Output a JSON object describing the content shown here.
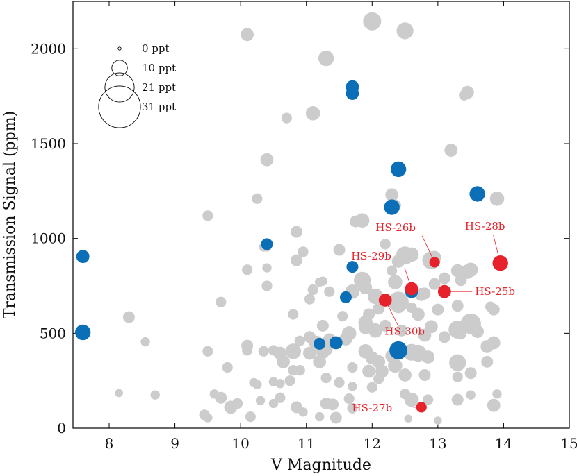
{
  "chart_data": {
    "type": "scatter",
    "title": "",
    "xlabel": "V Magnitude",
    "ylabel": "Transmission Signal (ppm)",
    "xlim": [
      7.45,
      15.0
    ],
    "ylim": [
      0,
      2250
    ],
    "xticks": [
      8,
      9,
      10,
      11,
      12,
      13,
      14,
      15
    ],
    "yticks": [
      0,
      500,
      1000,
      1500,
      2000
    ],
    "grid": false,
    "legend": {
      "placement": "top-left",
      "title": "",
      "entries": [
        {
          "label": "0 ppt",
          "size": 0
        },
        {
          "label": "10 ppt",
          "size": 10
        },
        {
          "label": "21 ppt",
          "size": 21
        },
        {
          "label": "31 ppt",
          "size": 31
        }
      ]
    },
    "colors": {
      "known": "#cccccc",
      "highlight": "#0a6fb7",
      "new": "#e8222a"
    },
    "series": [
      {
        "key": "known",
        "points": [
          [
            10.1,
            2075,
            8
          ],
          [
            12.0,
            2145,
            12
          ],
          [
            12.5,
            2095,
            11
          ],
          [
            11.3,
            1950,
            10
          ],
          [
            11.1,
            1660,
            9
          ],
          [
            10.7,
            1635,
            6
          ],
          [
            13.45,
            1770,
            8
          ],
          [
            13.4,
            1755,
            6
          ],
          [
            13.2,
            1465,
            8
          ],
          [
            10.4,
            1415,
            8
          ],
          [
            12.3,
            1230,
            8
          ],
          [
            12.35,
            1175,
            7
          ],
          [
            10.25,
            1210,
            6
          ],
          [
            13.9,
            1210,
            9
          ],
          [
            9.5,
            1120,
            6
          ],
          [
            11.85,
            1095,
            9
          ],
          [
            11.75,
            1090,
            7
          ],
          [
            12.2,
            970,
            6
          ],
          [
            11.5,
            940,
            7
          ],
          [
            10.85,
            1035,
            7
          ],
          [
            10.95,
            930,
            6
          ],
          [
            10.4,
            955,
            5
          ],
          [
            10.35,
            955,
            5
          ],
          [
            10.4,
            845,
            5
          ],
          [
            10.1,
            835,
            6
          ],
          [
            10.85,
            885,
            7
          ],
          [
            12.3,
            830,
            6
          ],
          [
            12.5,
            910,
            12
          ],
          [
            12.4,
            880,
            8
          ],
          [
            12.6,
            915,
            9
          ],
          [
            12.95,
            900,
            8
          ],
          [
            12.9,
            885,
            12
          ],
          [
            13.3,
            830,
            8
          ],
          [
            13.45,
            825,
            9
          ],
          [
            13.5,
            835,
            9
          ],
          [
            13.1,
            790,
            7
          ],
          [
            12.75,
            705,
            8
          ],
          [
            12.8,
            710,
            7
          ],
          [
            12.95,
            760,
            7
          ],
          [
            13.3,
            645,
            7
          ],
          [
            13.35,
            780,
            7
          ],
          [
            13.8,
            640,
            6
          ],
          [
            13.85,
            625,
            7
          ],
          [
            11.85,
            780,
            11
          ],
          [
            11.7,
            720,
            9
          ],
          [
            11.9,
            740,
            8
          ],
          [
            12.35,
            770,
            9
          ],
          [
            12.05,
            695,
            10
          ],
          [
            12.4,
            665,
            14
          ],
          [
            11.35,
            720,
            6
          ],
          [
            11.1,
            730,
            6
          ],
          [
            11.05,
            680,
            6
          ],
          [
            11.2,
            770,
            5
          ],
          [
            11.25,
            775,
            5
          ],
          [
            10.4,
            750,
            6
          ],
          [
            9.7,
            665,
            6
          ],
          [
            8.3,
            585,
            7
          ],
          [
            8.55,
            455,
            5
          ],
          [
            10.8,
            600,
            6
          ],
          [
            11.55,
            590,
            6
          ],
          [
            11.95,
            600,
            7
          ],
          [
            12.1,
            630,
            7
          ],
          [
            12.4,
            640,
            8
          ],
          [
            12.7,
            600,
            8
          ],
          [
            12.6,
            635,
            6
          ],
          [
            12.2,
            540,
            7
          ],
          [
            12.45,
            515,
            7
          ],
          [
            12.9,
            535,
            8
          ],
          [
            13.0,
            625,
            7
          ],
          [
            13.3,
            520,
            12
          ],
          [
            13.5,
            550,
            14
          ],
          [
            13.6,
            510,
            8
          ],
          [
            13.1,
            480,
            7
          ],
          [
            12.8,
            490,
            8
          ],
          [
            11.9,
            555,
            9
          ],
          [
            11.9,
            530,
            8
          ],
          [
            12.05,
            515,
            9
          ],
          [
            11.65,
            500,
            9
          ],
          [
            11.25,
            540,
            7
          ],
          [
            11.05,
            480,
            7
          ],
          [
            11.15,
            450,
            9
          ],
          [
            10.9,
            460,
            6
          ],
          [
            11.05,
            395,
            8
          ],
          [
            10.8,
            405,
            10
          ],
          [
            11.35,
            465,
            8
          ],
          [
            11.6,
            470,
            8
          ],
          [
            11.3,
            415,
            8
          ],
          [
            10.6,
            395,
            8
          ],
          [
            10.5,
            410,
            6
          ],
          [
            10.35,
            405,
            6
          ],
          [
            10.1,
            410,
            6
          ],
          [
            10.1,
            435,
            7
          ],
          [
            9.5,
            405,
            6
          ],
          [
            10.65,
            350,
            8
          ],
          [
            10.8,
            305,
            6
          ],
          [
            10.9,
            305,
            6
          ],
          [
            11.2,
            350,
            8
          ],
          [
            11.3,
            265,
            6
          ],
          [
            11.25,
            400,
            8
          ],
          [
            11.9,
            405,
            9
          ],
          [
            12.0,
            370,
            8
          ],
          [
            12.1,
            350,
            8
          ],
          [
            11.95,
            300,
            8
          ],
          [
            12.3,
            380,
            8
          ],
          [
            12.6,
            400,
            11
          ],
          [
            12.7,
            395,
            11
          ],
          [
            12.85,
            375,
            8
          ],
          [
            13.3,
            345,
            11
          ],
          [
            13.75,
            350,
            7
          ],
          [
            13.75,
            430,
            8
          ],
          [
            13.85,
            450,
            8
          ],
          [
            13.5,
            290,
            7
          ],
          [
            13.3,
            270,
            6
          ],
          [
            12.8,
            280,
            7
          ],
          [
            12.5,
            280,
            8
          ],
          [
            12.35,
            330,
            9
          ],
          [
            12.15,
            300,
            8
          ],
          [
            12.1,
            260,
            6
          ],
          [
            11.7,
            320,
            6
          ],
          [
            11.5,
            240,
            6
          ],
          [
            11.7,
            220,
            5
          ],
          [
            12.0,
            215,
            6
          ],
          [
            12.5,
            180,
            6
          ],
          [
            12.6,
            150,
            9
          ],
          [
            12.85,
            150,
            6
          ],
          [
            13.3,
            150,
            7
          ],
          [
            13.9,
            180,
            5
          ],
          [
            13.5,
            175,
            5
          ],
          [
            13.85,
            120,
            8
          ],
          [
            11.65,
            155,
            6
          ],
          [
            11.4,
            125,
            7
          ],
          [
            11.3,
            130,
            7
          ],
          [
            11.2,
            60,
            5
          ],
          [
            11.45,
            55,
            7
          ],
          [
            11.7,
            105,
            6
          ],
          [
            10.95,
            85,
            5
          ],
          [
            10.85,
            110,
            7
          ],
          [
            10.6,
            160,
            6
          ],
          [
            10.5,
            130,
            5
          ],
          [
            10.6,
            235,
            5
          ],
          [
            10.5,
            245,
            5
          ],
          [
            10.2,
            240,
            5
          ],
          [
            10.25,
            230,
            5
          ],
          [
            10.3,
            145,
            5
          ],
          [
            10.15,
            60,
            6
          ],
          [
            9.95,
            130,
            6
          ],
          [
            9.85,
            110,
            8
          ],
          [
            9.7,
            160,
            7
          ],
          [
            9.6,
            180,
            5
          ],
          [
            9.8,
            320,
            6
          ],
          [
            9.45,
            70,
            6
          ],
          [
            9.5,
            55,
            5
          ],
          [
            8.15,
            185,
            4
          ],
          [
            8.7,
            175,
            5
          ],
          [
            13.0,
            40,
            4
          ],
          [
            12.55,
            50,
            4
          ],
          [
            13.35,
            495,
            6
          ],
          [
            10.75,
            250,
            6
          ]
        ]
      },
      {
        "key": "highlight",
        "points": [
          [
            11.7,
            1800,
            8
          ],
          [
            11.7,
            1765,
            8
          ],
          [
            12.4,
            1365,
            10
          ],
          [
            12.3,
            1165,
            10
          ],
          [
            13.6,
            1235,
            10
          ],
          [
            10.4,
            970,
            7
          ],
          [
            7.6,
            905,
            8
          ],
          [
            11.7,
            850,
            7
          ],
          [
            11.6,
            690,
            7
          ],
          [
            12.6,
            720,
            8
          ],
          [
            7.6,
            505,
            10
          ],
          [
            11.2,
            445,
            7
          ],
          [
            11.45,
            450,
            8
          ],
          [
            12.4,
            410,
            12
          ]
        ]
      },
      {
        "key": "new",
        "points": [
          {
            "label": "HS-26b",
            "x": 12.95,
            "y": 875,
            "size": 6
          },
          {
            "label": "HS-28b",
            "x": 13.95,
            "y": 870,
            "size": 10
          },
          {
            "label": "HS-29b",
            "x": 12.6,
            "y": 735,
            "size": 8
          },
          {
            "label": "HS-25b",
            "x": 13.1,
            "y": 720,
            "size": 8
          },
          {
            "label": "HS-30b",
            "x": 12.2,
            "y": 675,
            "size": 8
          },
          {
            "label": "HS-27b",
            "x": 12.75,
            "y": 110,
            "size": 6
          }
        ]
      }
    ],
    "annotations": [
      {
        "text": "HS-26b",
        "point": 0
      },
      {
        "text": "HS-28b",
        "point": 1
      },
      {
        "text": "HS-29b",
        "point": 2
      },
      {
        "text": "HS-25b",
        "point": 3
      },
      {
        "text": "HS-30b",
        "point": 4
      },
      {
        "text": "HS-27b",
        "point": 5
      }
    ]
  }
}
